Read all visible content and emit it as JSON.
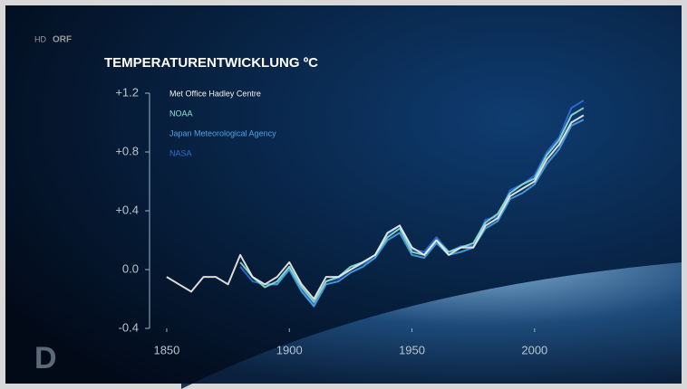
{
  "overlay": {
    "badge": "HD",
    "channel": "ORF",
    "show_logo": "D"
  },
  "chart_data": {
    "type": "line",
    "title": "TEMPERATURENTWICKLUNG ºC",
    "x": [
      1850,
      1855,
      1860,
      1865,
      1870,
      1875,
      1880,
      1885,
      1890,
      1895,
      1900,
      1905,
      1910,
      1915,
      1920,
      1925,
      1930,
      1935,
      1940,
      1945,
      1950,
      1955,
      1960,
      1965,
      1970,
      1975,
      1980,
      1985,
      1990,
      1995,
      2000,
      2005,
      2010,
      2015,
      2020
    ],
    "xlim": [
      1843,
      2030
    ],
    "xticks": [
      1850,
      1900,
      1950,
      2000
    ],
    "ylim": [
      -0.4,
      1.2
    ],
    "yticks": [
      {
        "value": -0.4,
        "label": "-0.4"
      },
      {
        "value": 0,
        "label": "0.0"
      },
      {
        "value": 0.4,
        "label": "+0.4"
      },
      {
        "value": 0.8,
        "label": "+0.8"
      },
      {
        "value": 1.2,
        "label": "+1.2"
      }
    ],
    "series": [
      {
        "name": "Met Office Hadley Centre",
        "color": "#f2f2ea",
        "values": [
          -0.05,
          -0.1,
          -0.15,
          -0.05,
          -0.05,
          -0.1,
          0.1,
          -0.05,
          -0.1,
          -0.05,
          0.05,
          -0.1,
          -0.2,
          -0.05,
          -0.05,
          0,
          0.05,
          0.1,
          0.25,
          0.3,
          0.15,
          0.1,
          0.2,
          0.1,
          0.15,
          0.15,
          0.3,
          0.35,
          0.5,
          0.55,
          0.6,
          0.75,
          0.85,
          1.0,
          1.05
        ]
      },
      {
        "name": "NOAA",
        "color": "#8fe3cf",
        "values": [
          null,
          null,
          null,
          null,
          null,
          null,
          0.05,
          -0.05,
          -0.12,
          -0.08,
          0.02,
          -0.12,
          -0.22,
          -0.08,
          -0.05,
          0.02,
          0.05,
          0.1,
          0.22,
          0.28,
          0.12,
          0.1,
          0.2,
          0.12,
          0.15,
          0.18,
          0.32,
          0.38,
          0.52,
          0.58,
          0.62,
          0.78,
          0.88,
          1.05,
          1.1
        ]
      },
      {
        "name": "Japan Meteorological Agency",
        "color": "#4aa3e6",
        "values": [
          null,
          null,
          null,
          null,
          null,
          null,
          null,
          null,
          -0.1,
          -0.1,
          0,
          -0.15,
          -0.25,
          -0.1,
          -0.08,
          -0.02,
          0.02,
          0.08,
          0.2,
          0.25,
          0.1,
          0.08,
          0.18,
          0.1,
          0.12,
          0.15,
          0.28,
          0.33,
          0.48,
          0.52,
          0.58,
          0.72,
          0.82,
          0.98,
          1.02
        ]
      },
      {
        "name": "NASA",
        "color": "#2f6fe0",
        "values": [
          null,
          null,
          null,
          null,
          null,
          null,
          0.02,
          -0.08,
          -0.1,
          -0.1,
          0.02,
          -0.14,
          -0.24,
          -0.08,
          -0.06,
          0,
          0.04,
          0.08,
          0.24,
          0.3,
          0.14,
          0.12,
          0.22,
          0.12,
          0.16,
          0.16,
          0.34,
          0.36,
          0.54,
          0.58,
          0.64,
          0.8,
          0.9,
          1.1,
          1.15
        ]
      }
    ]
  }
}
